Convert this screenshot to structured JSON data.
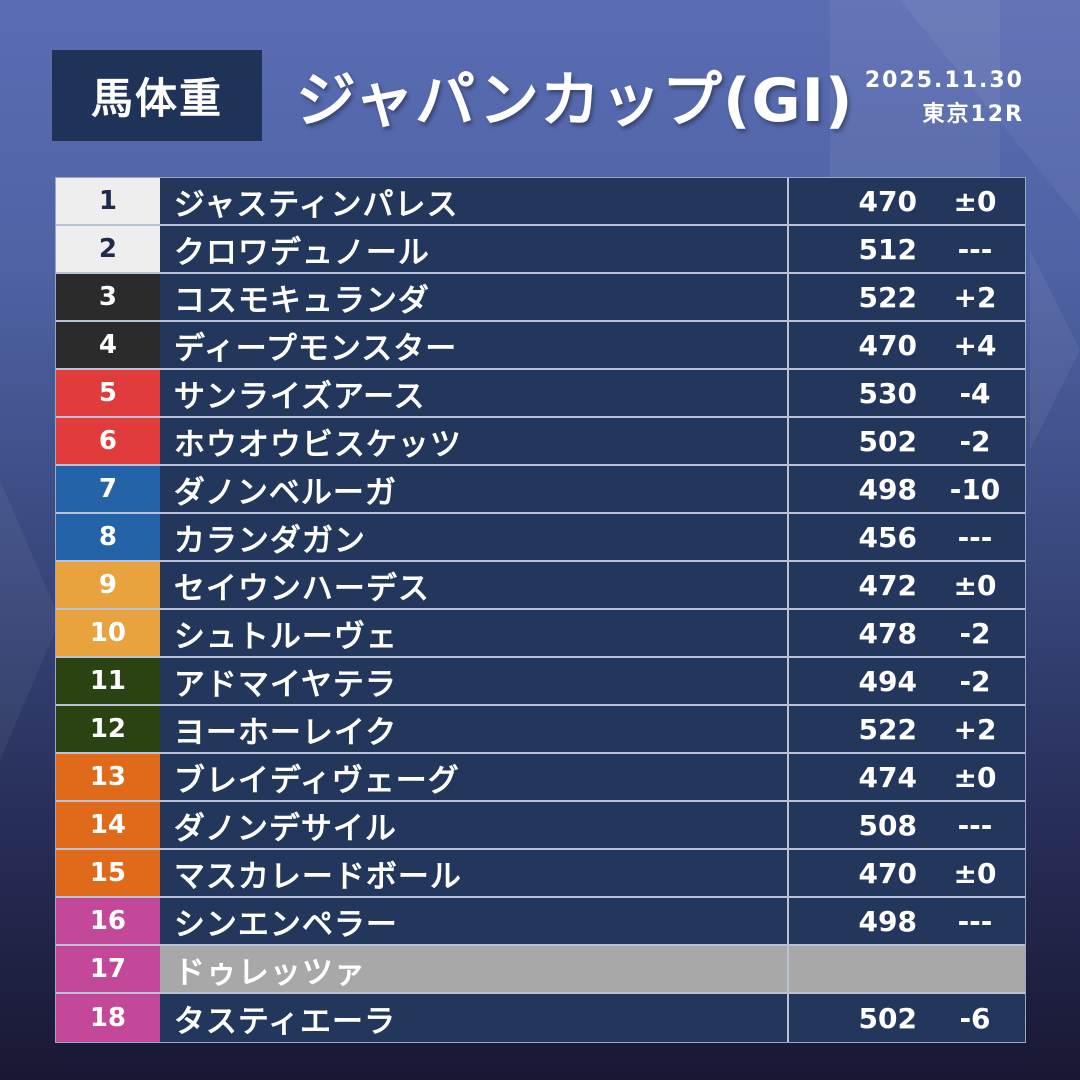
{
  "header": {
    "badge": "馬体重",
    "title": "ジャパンカップ(GI)",
    "date": "2025.11.30",
    "race": "東京12R"
  },
  "frame_colors": {
    "1": "#eeeeee",
    "2": "#2b2b2b",
    "3": "#e03c3c",
    "4": "#2463a8",
    "5": "#e8a23e",
    "6": "#2b4313",
    "7": "#e06a1a",
    "8": "#c4489a"
  },
  "rows": [
    {
      "no": "1",
      "frame": 1,
      "name": "ジャスティンパレス",
      "weight": "470",
      "diff": "±0"
    },
    {
      "no": "2",
      "frame": 1,
      "name": "クロワデュノール",
      "weight": "512",
      "diff": "---"
    },
    {
      "no": "3",
      "frame": 2,
      "name": "コスモキュランダ",
      "weight": "522",
      "diff": "+2"
    },
    {
      "no": "4",
      "frame": 2,
      "name": "ディープモンスター",
      "weight": "470",
      "diff": "+4"
    },
    {
      "no": "5",
      "frame": 3,
      "name": "サンライズアース",
      "weight": "530",
      "diff": "-4"
    },
    {
      "no": "6",
      "frame": 3,
      "name": "ホウオウビスケッツ",
      "weight": "502",
      "diff": "-2"
    },
    {
      "no": "7",
      "frame": 4,
      "name": "ダノンベルーガ",
      "weight": "498",
      "diff": "-10"
    },
    {
      "no": "8",
      "frame": 4,
      "name": "カランダガン",
      "weight": "456",
      "diff": "---"
    },
    {
      "no": "9",
      "frame": 5,
      "name": "セイウンハーデス",
      "weight": "472",
      "diff": "±0"
    },
    {
      "no": "10",
      "frame": 5,
      "name": "シュトルーヴェ",
      "weight": "478",
      "diff": "-2"
    },
    {
      "no": "11",
      "frame": 6,
      "name": "アドマイヤテラ",
      "weight": "494",
      "diff": "-2"
    },
    {
      "no": "12",
      "frame": 6,
      "name": "ヨーホーレイク",
      "weight": "522",
      "diff": "+2"
    },
    {
      "no": "13",
      "frame": 7,
      "name": "ブレイディヴェーグ",
      "weight": "474",
      "diff": "±0"
    },
    {
      "no": "14",
      "frame": 7,
      "name": "ダノンデサイル",
      "weight": "508",
      "diff": "---"
    },
    {
      "no": "15",
      "frame": 7,
      "name": "マスカレードボール",
      "weight": "470",
      "diff": "±0"
    },
    {
      "no": "16",
      "frame": 8,
      "name": "シンエンペラー",
      "weight": "498",
      "diff": "---"
    },
    {
      "no": "17",
      "frame": 8,
      "name": "ドゥレッツァ",
      "weight": "",
      "diff": "",
      "scratched": true
    },
    {
      "no": "18",
      "frame": 8,
      "name": "タスティエーラ",
      "weight": "502",
      "diff": "-6"
    }
  ]
}
